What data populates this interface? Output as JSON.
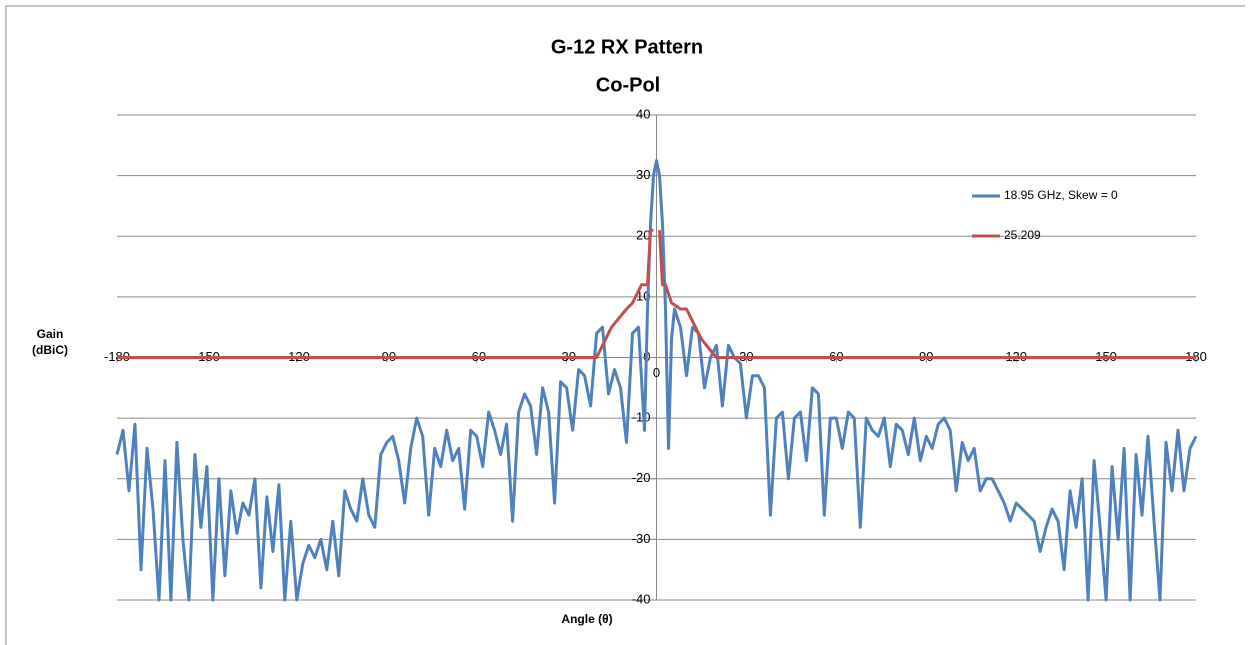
{
  "chart_data": {
    "type": "line",
    "title": "G-12 RX  Pattern",
    "subtitle": "Co-Pol",
    "x_label": "Angle (θ)",
    "y_label": "Gain (dBiC)",
    "xlim": [
      -180,
      180
    ],
    "xticks": [
      -180,
      -150,
      -120,
      -90,
      -60,
      -30,
      0,
      30,
      60,
      90,
      120,
      150,
      180
    ],
    "ylim": [
      -40,
      40
    ],
    "yticks": [
      -40,
      -30,
      -20,
      -10,
      0,
      10,
      20,
      30,
      40
    ],
    "grid": true,
    "legend": "right",
    "series": [
      {
        "name": "18.95 GHz,  Skew = 0",
        "color": "#4f81bd",
        "x": [
          -180,
          -178,
          -176,
          -174,
          -172,
          -170,
          -168,
          -166,
          -164,
          -162,
          -160,
          -158,
          -156,
          -154,
          -152,
          -150,
          -148,
          -146,
          -144,
          -142,
          -140,
          -138,
          -136,
          -134,
          -132,
          -130,
          -128,
          -126,
          -124,
          -122,
          -120,
          -118,
          -116,
          -114,
          -112,
          -110,
          -108,
          -106,
          -104,
          -102,
          -100,
          -98,
          -96,
          -94,
          -92,
          -90,
          -88,
          -86,
          -84,
          -82,
          -80,
          -78,
          -76,
          -74,
          -72,
          -70,
          -68,
          -66,
          -64,
          -62,
          -60,
          -58,
          -56,
          -54,
          -52,
          -50,
          -48,
          -46,
          -44,
          -42,
          -40,
          -38,
          -36,
          -34,
          -32,
          -30,
          -28,
          -26,
          -24,
          -22,
          -20,
          -18,
          -16,
          -14,
          -12,
          -10,
          -8,
          -6,
          -4,
          -3,
          -2,
          -1,
          0,
          1,
          2,
          3,
          4,
          5,
          6,
          8,
          10,
          12,
          14,
          16,
          18,
          20,
          22,
          24,
          26,
          28,
          30,
          32,
          34,
          36,
          38,
          40,
          42,
          44,
          46,
          48,
          50,
          52,
          54,
          56,
          58,
          60,
          62,
          64,
          66,
          68,
          70,
          72,
          74,
          76,
          78,
          80,
          82,
          84,
          86,
          88,
          90,
          92,
          94,
          96,
          98,
          100,
          102,
          104,
          106,
          108,
          110,
          112,
          114,
          116,
          118,
          120,
          122,
          124,
          126,
          128,
          130,
          132,
          134,
          136,
          138,
          140,
          142,
          144,
          146,
          148,
          150,
          152,
          154,
          156,
          158,
          160,
          162,
          164,
          166,
          168,
          170,
          172,
          174,
          176,
          178,
          180
        ],
        "values": [
          -16,
          -12,
          -22,
          -11,
          -35,
          -15,
          -25,
          -40,
          -17,
          -40,
          -14,
          -30,
          -40,
          -16,
          -28,
          -18,
          -40,
          -20,
          -36,
          -22,
          -29,
          -24,
          -26,
          -20,
          -38,
          -23,
          -32,
          -21,
          -40,
          -27,
          -40,
          -34,
          -31,
          -33,
          -30,
          -35,
          -27,
          -36,
          -22,
          -25,
          -27,
          -20,
          -26,
          -28,
          -16,
          -14,
          -13,
          -17,
          -24,
          -15,
          -10,
          -13,
          -26,
          -15,
          -18,
          -12,
          -17,
          -15,
          -25,
          -12,
          -13,
          -18,
          -9,
          -12,
          -16,
          -11,
          -27,
          -9,
          -6,
          -8,
          -16,
          -5,
          -9,
          -24,
          -4,
          -5,
          -12,
          -2,
          -3,
          -8,
          4,
          5,
          -6,
          -2,
          -5,
          -14,
          4,
          5,
          -12,
          8,
          22,
          30,
          32.5,
          30,
          22,
          8,
          -15,
          3,
          8,
          5,
          -3,
          5,
          4,
          -5,
          0,
          2,
          -8,
          2,
          0,
          -1,
          -10,
          -3,
          -3,
          -5,
          -26,
          -10,
          -9,
          -20,
          -10,
          -9,
          -17,
          -5,
          -6,
          -26,
          -10,
          -10,
          -15,
          -9,
          -10,
          -28,
          -10,
          -12,
          -13,
          -10,
          -18,
          -11,
          -12,
          -16,
          -10,
          -17,
          -13,
          -15,
          -11,
          -10,
          -12,
          -22,
          -14,
          -17,
          -15,
          -22,
          -20,
          -20,
          -22,
          -24,
          -27,
          -24,
          -25,
          -26,
          -27,
          -32,
          -28,
          -25,
          -27,
          -35,
          -22,
          -28,
          -20,
          -40,
          -17,
          -28,
          -40,
          -18,
          -30,
          -15,
          -40,
          -16,
          -26,
          -13,
          -27,
          -40,
          -14,
          -22,
          -12,
          -22,
          -15,
          -13
        ]
      },
      {
        "name": "25.209",
        "color": "#c0504d",
        "x": [
          -180,
          -20,
          -15,
          -10,
          -8,
          -5,
          -3,
          -2,
          -1,
          0,
          1,
          2,
          3,
          5,
          8,
          10,
          15,
          20,
          180
        ],
        "values": [
          0,
          0,
          5,
          8,
          9,
          12,
          12,
          21,
          21,
          null,
          21,
          12,
          12,
          9,
          8,
          8,
          3,
          0,
          0
        ]
      }
    ]
  }
}
